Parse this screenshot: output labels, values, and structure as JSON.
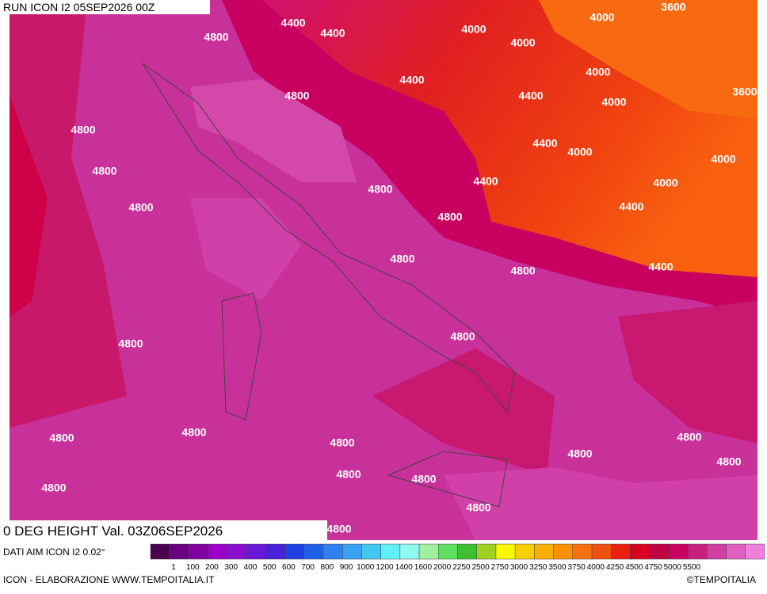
{
  "header": {
    "run": "RUN ICON I2 05SEP2026 00Z"
  },
  "map": {
    "contour_labels": [
      "4400",
      "4400",
      "4400",
      "4400",
      "4400",
      "4400",
      "4400",
      "4400",
      "4000",
      "4000",
      "4000",
      "4000",
      "4000",
      "4000",
      "4000",
      "4000",
      "3600",
      "3600",
      "4800",
      "4800",
      "4800",
      "4800",
      "4800",
      "4800",
      "4800",
      "4800",
      "4800",
      "4800",
      "4800",
      "4800",
      "4800",
      "4800",
      "4800",
      "4800",
      "4800",
      "4800",
      "4800",
      "4800",
      "4800",
      "4800"
    ]
  },
  "footer": {
    "title": "0 DEG HEIGHT Val. 03Z06SEP2026",
    "source": "DATI AIM ICON I2 0.02°",
    "credit": "ICON - ELABORAZIONE WWW.TEMPOITALIA.IT",
    "brand": "©TEMPOITALIA"
  },
  "legend": {
    "labels": [
      "1",
      "100",
      "200",
      "300",
      "400",
      "500",
      "600",
      "700",
      "800",
      "900",
      "1000",
      "1200",
      "1400",
      "1600",
      "2000",
      "2250",
      "2500",
      "2750",
      "3000",
      "3250",
      "3500",
      "3750",
      "4000",
      "4250",
      "4500",
      "4750",
      "5000",
      "5500"
    ],
    "colors": [
      "#4b0050",
      "#6a0080",
      "#8000a0",
      "#9a00c8",
      "#8a10d0",
      "#6a18d8",
      "#4a20d8",
      "#2040e0",
      "#2060e8",
      "#3080f0",
      "#3aa0f0",
      "#40c8f0",
      "#60f0f8",
      "#90f8f0",
      "#a0f0a0",
      "#60e060",
      "#40c030",
      "#a0d020",
      "#f8f800",
      "#f8d000",
      "#f8b000",
      "#f89000",
      "#f87010",
      "#f05010",
      "#e82010",
      "#d80020",
      "#c00040",
      "#c80060",
      "#c82080",
      "#d040a0",
      "#e060c0",
      "#f080e0"
    ]
  }
}
